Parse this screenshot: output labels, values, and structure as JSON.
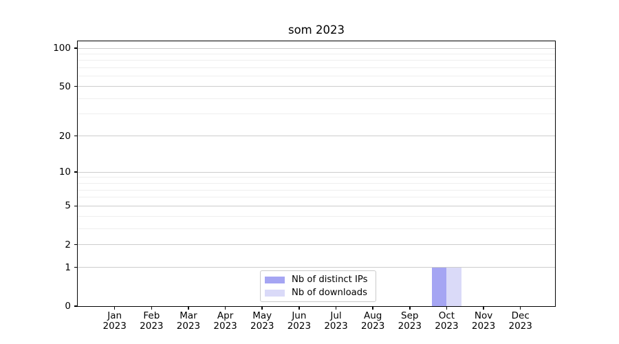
{
  "title": "som 2023",
  "colors": {
    "distinct_ips": "#a5a5f3",
    "downloads": "#dadaf8",
    "grid_major": "#cccccc",
    "grid_minor": "#eeeeee",
    "axis": "#000000",
    "legend_border": "#c9c9c9"
  },
  "chart_data": {
    "type": "bar",
    "title": "som 2023",
    "xlabel": "",
    "ylabel": "",
    "y_scale": "log1p",
    "ylim": [
      0,
      113
    ],
    "grid": "horizontal major+minor",
    "legend_position": "lower center",
    "categories": [
      "Jan 2023",
      "Feb 2023",
      "Mar 2023",
      "Apr 2023",
      "May 2023",
      "Jun 2023",
      "Jul 2023",
      "Aug 2023",
      "Sep 2023",
      "Oct 2023",
      "Nov 2023",
      "Dec 2023"
    ],
    "y_ticks": [
      0,
      1,
      2,
      5,
      10,
      20,
      50,
      100
    ],
    "y_minor_ticks": [
      3,
      4,
      6,
      7,
      8,
      9,
      30,
      40,
      60,
      70,
      80,
      90
    ],
    "series": [
      {
        "name": "Nb of distinct IPs",
        "color_key": "distinct_ips",
        "values": [
          0,
          0,
          0,
          0,
          0,
          0,
          0,
          0,
          0,
          1,
          0,
          0
        ]
      },
      {
        "name": "Nb of downloads",
        "color_key": "downloads",
        "values": [
          0,
          0,
          0,
          0,
          0,
          0,
          0,
          0,
          0,
          1,
          0,
          0
        ]
      }
    ]
  }
}
